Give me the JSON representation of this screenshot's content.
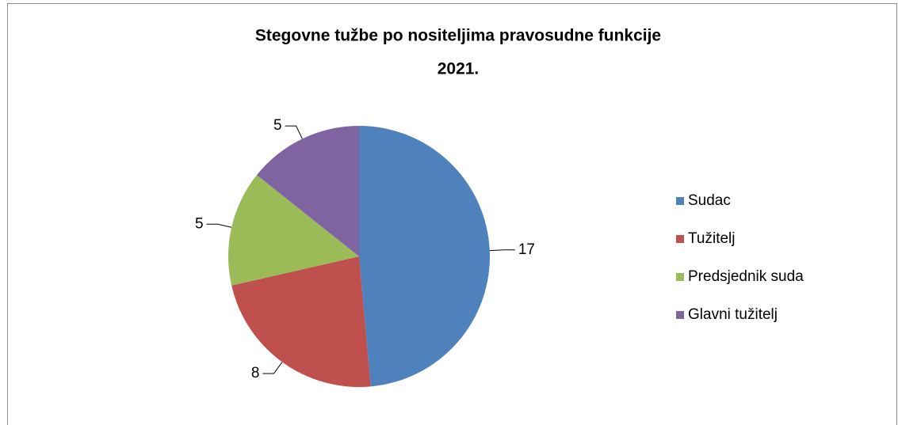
{
  "chart_data": {
    "type": "pie",
    "title": [
      "Stegovne tužbe po nositeljima pravosudne funkcije",
      "2021."
    ],
    "categories": [
      "Sudac",
      "Tužitelj",
      "Predsjednik suda",
      "Glavni tužitelj"
    ],
    "values": [
      17,
      8,
      5,
      5
    ],
    "colors": [
      "#4f81bd",
      "#c0504d",
      "#9bbb59",
      "#8064a2"
    ],
    "legend": "right"
  }
}
